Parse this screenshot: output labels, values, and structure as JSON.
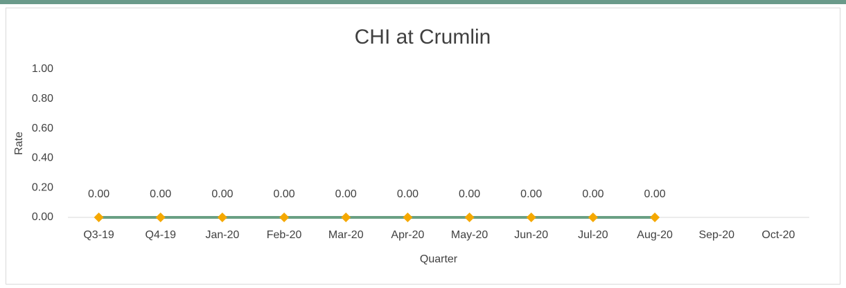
{
  "chart_data": {
    "type": "line",
    "title": "CHI at Crumlin",
    "x_label": "Quarter",
    "y_label": "Rate",
    "categories": [
      "Q3-19",
      "Q4-19",
      "Jan-20",
      "Feb-20",
      "Mar-20",
      "Apr-20",
      "May-20",
      "Jun-20",
      "Jul-20",
      "Aug-20",
      "Sep-20",
      "Oct-20"
    ],
    "series": [
      {
        "name": "Rate",
        "color": "#6aa084",
        "marker_color": "#f5a800",
        "values": [
          0,
          0,
          0,
          0,
          0,
          0,
          0,
          0,
          0,
          0,
          null,
          null
        ],
        "value_labels": [
          "0.00",
          "0.00",
          "0.00",
          "0.00",
          "0.00",
          "0.00",
          "0.00",
          "0.00",
          "0.00",
          "0.00",
          null,
          null
        ]
      }
    ],
    "ylim": [
      0,
      1
    ],
    "yticks": [
      {
        "value": 0,
        "label": "0.00"
      },
      {
        "value": 0.2,
        "label": "0.20"
      },
      {
        "value": 0.4,
        "label": "0.40"
      },
      {
        "value": 0.6,
        "label": "0.60"
      },
      {
        "value": 0.8,
        "label": "0.80"
      },
      {
        "value": 1,
        "label": "1.00"
      }
    ],
    "grid": false
  }
}
